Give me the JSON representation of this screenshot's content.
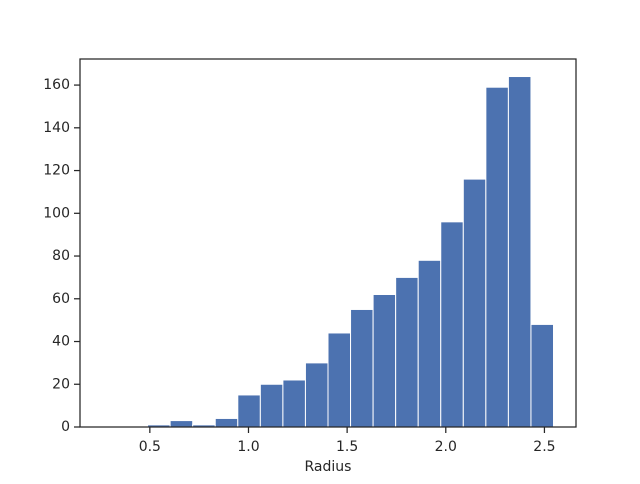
{
  "chart_data": {
    "type": "histogram",
    "x_label": "Radius",
    "bins": [
      0.26,
      0.3743,
      0.4886,
      0.6029,
      0.7172,
      0.8315,
      0.9458,
      1.0601,
      1.1744,
      1.2887,
      1.403,
      1.5173,
      1.6316,
      1.7459,
      1.8602,
      1.9745,
      2.0888,
      2.2031,
      2.3174,
      2.4317,
      2.546
    ],
    "values": [
      0,
      0,
      1,
      3,
      1,
      4,
      15,
      20,
      22,
      30,
      44,
      55,
      62,
      70,
      78,
      96,
      116,
      159,
      164,
      48
    ],
    "color": "#4c72b0",
    "xlim": [
      0.146,
      2.66
    ],
    "xticks": [
      0.5,
      1.0,
      1.5,
      2.0,
      2.5
    ],
    "ylim": [
      0,
      172.2
    ],
    "yticks": [
      0,
      20,
      40,
      60,
      80,
      100,
      120,
      140,
      160
    ]
  }
}
